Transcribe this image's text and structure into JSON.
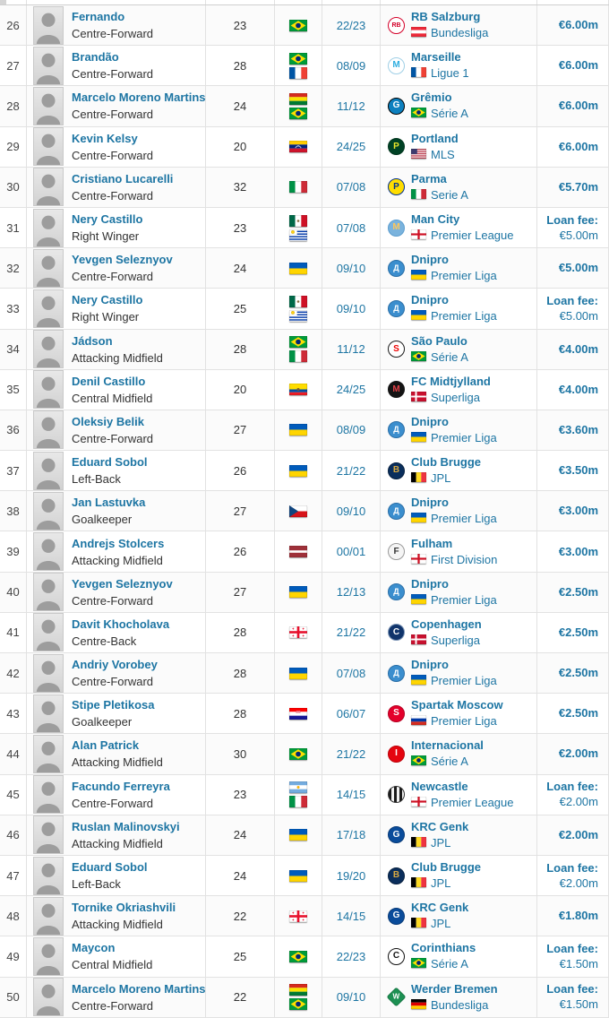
{
  "colors": {
    "link_blue": "#1d75a3",
    "text_dark": "#333333",
    "row_border": "#e2e2e2",
    "alt_row_bg": "#fbfbfb"
  },
  "table": {
    "rows": [
      {
        "rank": "26",
        "player": {
          "name": "Fernando",
          "position": "Centre-Forward"
        },
        "age": "23",
        "nationalities": [
          "Brazil"
        ],
        "season": "22/23",
        "club": {
          "name": "RB Salzburg",
          "badge": "rb-salzburg",
          "league": "Bundesliga",
          "league_country": "Austria"
        },
        "fee": {
          "value": "€6.00m"
        }
      },
      {
        "rank": "27",
        "player": {
          "name": "Brandão",
          "position": "Centre-Forward"
        },
        "age": "28",
        "nationalities": [
          "Brazil",
          "France"
        ],
        "season": "08/09",
        "club": {
          "name": "Marseille",
          "badge": "marseille",
          "league": "Ligue 1",
          "league_country": "France"
        },
        "fee": {
          "value": "€6.00m"
        }
      },
      {
        "rank": "28",
        "player": {
          "name": "Marcelo Moreno Martins",
          "position": "Centre-Forward"
        },
        "age": "24",
        "nationalities": [
          "Bolivia",
          "Brazil"
        ],
        "season": "11/12",
        "club": {
          "name": "Grêmio",
          "badge": "gremio",
          "league": "Série A",
          "league_country": "Brazil"
        },
        "fee": {
          "value": "€6.00m"
        }
      },
      {
        "rank": "29",
        "player": {
          "name": "Kevin Kelsy",
          "position": "Centre-Forward"
        },
        "age": "20",
        "nationalities": [
          "Venezuela"
        ],
        "season": "24/25",
        "club": {
          "name": "Portland",
          "badge": "portland",
          "league": "MLS",
          "league_country": "United States"
        },
        "fee": {
          "value": "€6.00m"
        }
      },
      {
        "rank": "30",
        "player": {
          "name": "Cristiano Lucarelli",
          "position": "Centre-Forward"
        },
        "age": "32",
        "nationalities": [
          "Italy"
        ],
        "season": "07/08",
        "club": {
          "name": "Parma",
          "badge": "parma",
          "league": "Serie A",
          "league_country": "Italy"
        },
        "fee": {
          "value": "€5.70m"
        }
      },
      {
        "rank": "31",
        "player": {
          "name": "Nery Castillo",
          "position": "Right Winger"
        },
        "age": "23",
        "nationalities": [
          "Mexico",
          "Uruguay"
        ],
        "season": "07/08",
        "club": {
          "name": "Man City",
          "badge": "man-city",
          "league": "Premier League",
          "league_country": "England"
        },
        "fee": {
          "label": "Loan fee:",
          "value": "€5.00m"
        }
      },
      {
        "rank": "32",
        "player": {
          "name": "Yevgen Seleznyov",
          "position": "Centre-Forward"
        },
        "age": "24",
        "nationalities": [
          "Ukraine"
        ],
        "season": "09/10",
        "club": {
          "name": "Dnipro",
          "badge": "dnipro",
          "league": "Premier Liga",
          "league_country": "Ukraine"
        },
        "fee": {
          "value": "€5.00m"
        }
      },
      {
        "rank": "33",
        "player": {
          "name": "Nery Castillo",
          "position": "Right Winger"
        },
        "age": "25",
        "nationalities": [
          "Mexico",
          "Uruguay"
        ],
        "season": "09/10",
        "club": {
          "name": "Dnipro",
          "badge": "dnipro",
          "league": "Premier Liga",
          "league_country": "Ukraine"
        },
        "fee": {
          "label": "Loan fee:",
          "value": "€5.00m"
        }
      },
      {
        "rank": "34",
        "player": {
          "name": "Jádson",
          "position": "Attacking Midfield"
        },
        "age": "28",
        "nationalities": [
          "Brazil",
          "Italy"
        ],
        "season": "11/12",
        "club": {
          "name": "São Paulo",
          "badge": "sao-paulo",
          "league": "Série A",
          "league_country": "Brazil"
        },
        "fee": {
          "value": "€4.00m"
        }
      },
      {
        "rank": "35",
        "player": {
          "name": "Denil Castillo",
          "position": "Central Midfield"
        },
        "age": "20",
        "nationalities": [
          "Ecuador"
        ],
        "season": "24/25",
        "club": {
          "name": "FC Midtjylland",
          "badge": "midtjylland",
          "league": "Superliga",
          "league_country": "Denmark"
        },
        "fee": {
          "value": "€4.00m"
        }
      },
      {
        "rank": "36",
        "player": {
          "name": "Oleksiy Belik",
          "position": "Centre-Forward"
        },
        "age": "27",
        "nationalities": [
          "Ukraine"
        ],
        "season": "08/09",
        "club": {
          "name": "Dnipro",
          "badge": "dnipro",
          "league": "Premier Liga",
          "league_country": "Ukraine"
        },
        "fee": {
          "value": "€3.60m"
        }
      },
      {
        "rank": "37",
        "player": {
          "name": "Eduard Sobol",
          "position": "Left-Back"
        },
        "age": "26",
        "nationalities": [
          "Ukraine"
        ],
        "season": "21/22",
        "club": {
          "name": "Club Brugge",
          "badge": "club-brugge",
          "league": "JPL",
          "league_country": "Belgium"
        },
        "fee": {
          "value": "€3.50m"
        }
      },
      {
        "rank": "38",
        "player": {
          "name": "Jan Lastuvka",
          "position": "Goalkeeper"
        },
        "age": "27",
        "nationalities": [
          "Czech Republic"
        ],
        "season": "09/10",
        "club": {
          "name": "Dnipro",
          "badge": "dnipro",
          "league": "Premier Liga",
          "league_country": "Ukraine"
        },
        "fee": {
          "value": "€3.00m"
        }
      },
      {
        "rank": "39",
        "player": {
          "name": "Andrejs Stolcers",
          "position": "Attacking Midfield"
        },
        "age": "26",
        "nationalities": [
          "Latvia"
        ],
        "season": "00/01",
        "club": {
          "name": "Fulham",
          "badge": "fulham",
          "league": "First Division",
          "league_country": "England"
        },
        "fee": {
          "value": "€3.00m"
        }
      },
      {
        "rank": "40",
        "player": {
          "name": "Yevgen Seleznyov",
          "position": "Centre-Forward"
        },
        "age": "27",
        "nationalities": [
          "Ukraine"
        ],
        "season": "12/13",
        "club": {
          "name": "Dnipro",
          "badge": "dnipro",
          "league": "Premier Liga",
          "league_country": "Ukraine"
        },
        "fee": {
          "value": "€2.50m"
        }
      },
      {
        "rank": "41",
        "player": {
          "name": "Davit Khocholava",
          "position": "Centre-Back"
        },
        "age": "28",
        "nationalities": [
          "Georgia"
        ],
        "season": "21/22",
        "club": {
          "name": "Copenhagen",
          "badge": "copenhagen",
          "league": "Superliga",
          "league_country": "Denmark"
        },
        "fee": {
          "value": "€2.50m"
        }
      },
      {
        "rank": "42",
        "player": {
          "name": "Andriy Vorobey",
          "position": "Centre-Forward"
        },
        "age": "28",
        "nationalities": [
          "Ukraine"
        ],
        "season": "07/08",
        "club": {
          "name": "Dnipro",
          "badge": "dnipro",
          "league": "Premier Liga",
          "league_country": "Ukraine"
        },
        "fee": {
          "value": "€2.50m"
        }
      },
      {
        "rank": "43",
        "player": {
          "name": "Stipe Pletikosa",
          "position": "Goalkeeper"
        },
        "age": "28",
        "nationalities": [
          "Croatia"
        ],
        "season": "06/07",
        "club": {
          "name": "Spartak Moscow",
          "badge": "spartak-moscow",
          "league": "Premier Liga",
          "league_country": "Russia"
        },
        "fee": {
          "value": "€2.50m"
        }
      },
      {
        "rank": "44",
        "player": {
          "name": "Alan Patrick",
          "position": "Attacking Midfield"
        },
        "age": "30",
        "nationalities": [
          "Brazil"
        ],
        "season": "21/22",
        "club": {
          "name": "Internacional",
          "badge": "internacional",
          "league": "Série A",
          "league_country": "Brazil"
        },
        "fee": {
          "value": "€2.00m"
        }
      },
      {
        "rank": "45",
        "player": {
          "name": "Facundo Ferreyra",
          "position": "Centre-Forward"
        },
        "age": "23",
        "nationalities": [
          "Argentina",
          "Italy"
        ],
        "season": "14/15",
        "club": {
          "name": "Newcastle",
          "badge": "newcastle",
          "league": "Premier League",
          "league_country": "England"
        },
        "fee": {
          "label": "Loan fee:",
          "value": "€2.00m"
        }
      },
      {
        "rank": "46",
        "player": {
          "name": "Ruslan Malinovskyi",
          "position": "Attacking Midfield"
        },
        "age": "24",
        "nationalities": [
          "Ukraine"
        ],
        "season": "17/18",
        "club": {
          "name": "KRC Genk",
          "badge": "krc-genk",
          "league": "JPL",
          "league_country": "Belgium"
        },
        "fee": {
          "value": "€2.00m"
        }
      },
      {
        "rank": "47",
        "player": {
          "name": "Eduard Sobol",
          "position": "Left-Back"
        },
        "age": "24",
        "nationalities": [
          "Ukraine"
        ],
        "season": "19/20",
        "club": {
          "name": "Club Brugge",
          "badge": "club-brugge",
          "league": "JPL",
          "league_country": "Belgium"
        },
        "fee": {
          "label": "Loan fee:",
          "value": "€2.00m"
        }
      },
      {
        "rank": "48",
        "player": {
          "name": "Tornike Okriashvili",
          "position": "Attacking Midfield"
        },
        "age": "22",
        "nationalities": [
          "Georgia"
        ],
        "season": "14/15",
        "club": {
          "name": "KRC Genk",
          "badge": "krc-genk",
          "league": "JPL",
          "league_country": "Belgium"
        },
        "fee": {
          "value": "€1.80m"
        }
      },
      {
        "rank": "49",
        "player": {
          "name": "Maycon",
          "position": "Central Midfield"
        },
        "age": "25",
        "nationalities": [
          "Brazil"
        ],
        "season": "22/23",
        "club": {
          "name": "Corinthians",
          "badge": "corinthians",
          "league": "Série A",
          "league_country": "Brazil"
        },
        "fee": {
          "label": "Loan fee:",
          "value": "€1.50m"
        }
      },
      {
        "rank": "50",
        "player": {
          "name": "Marcelo Moreno Martins",
          "position": "Centre-Forward"
        },
        "age": "22",
        "nationalities": [
          "Bolivia",
          "Brazil"
        ],
        "season": "09/10",
        "club": {
          "name": "Werder Bremen",
          "badge": "werder-bremen",
          "league": "Bundesliga",
          "league_country": "Germany"
        },
        "fee": {
          "label": "Loan fee:",
          "value": "€1.50m"
        }
      }
    ]
  }
}
